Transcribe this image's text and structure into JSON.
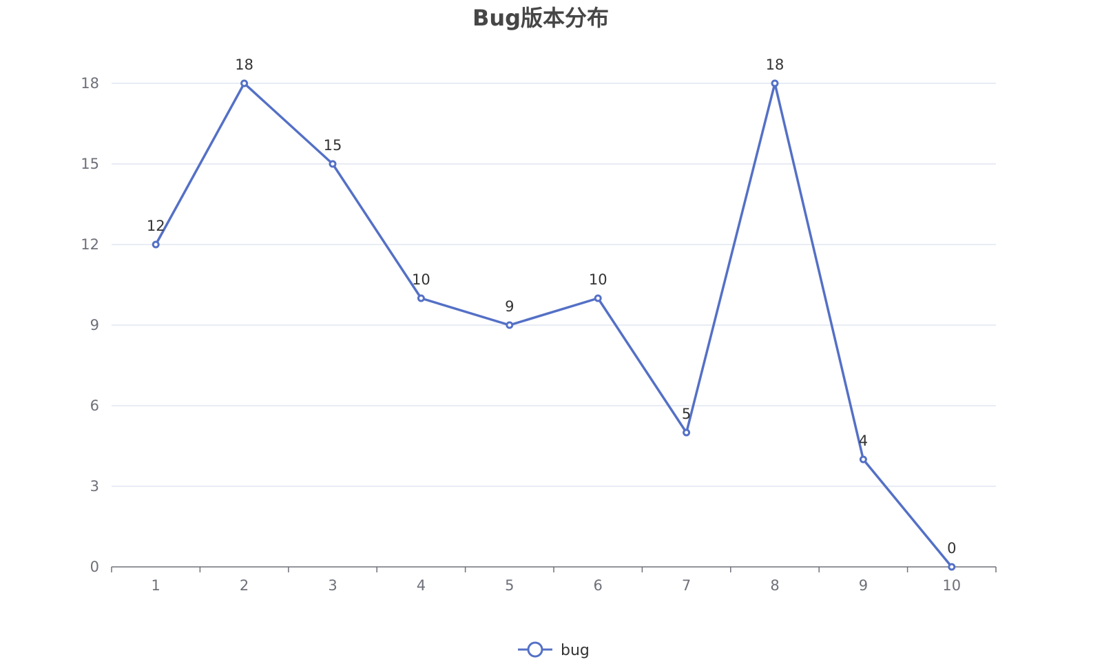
{
  "colors": {
    "series": "#5470c6",
    "grid": "#e0e6f1",
    "axis": "#6e7079",
    "title": "#464646",
    "label": "#333333"
  },
  "chart_data": {
    "type": "line",
    "title": "Bug版本分布",
    "xlabel": "",
    "ylabel": "",
    "categories": [
      "1",
      "2",
      "3",
      "4",
      "5",
      "6",
      "7",
      "8",
      "9",
      "10"
    ],
    "series": [
      {
        "name": "bug",
        "values": [
          12,
          18,
          15,
          10,
          9,
          10,
          5,
          18,
          4,
          0
        ]
      }
    ],
    "ylim": [
      0,
      18
    ],
    "yticks": [
      0,
      3,
      6,
      9,
      12,
      15,
      18
    ],
    "grid": true,
    "legend_position": "bottom-center",
    "data_labels": true,
    "marker": "hollow-circle"
  }
}
